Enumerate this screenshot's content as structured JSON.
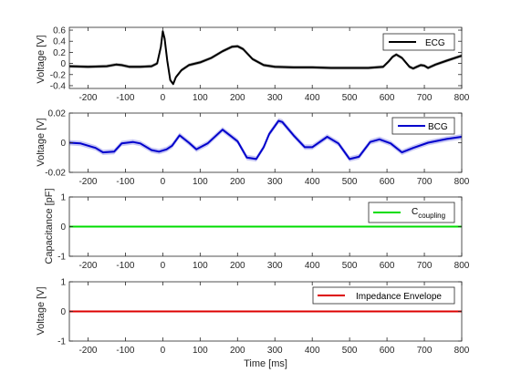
{
  "chart_data": [
    {
      "type": "line",
      "ylabel": "Voltage [V]",
      "xlim": [
        -250,
        800
      ],
      "ylim": [
        -0.45,
        0.65
      ],
      "xticks": [
        -200,
        -100,
        0,
        100,
        200,
        300,
        400,
        500,
        600,
        700,
        800
      ],
      "yticks": [
        -0.4,
        -0.2,
        0,
        0.2,
        0.4,
        0.6
      ],
      "ytick_labels": [
        "-0.4",
        "-0.2",
        "0",
        "0.2",
        "0.4",
        "0.6"
      ],
      "legend_position": "top-right",
      "band_color": "#a0a0a0",
      "series": [
        {
          "name": "ECG",
          "color": "#000000",
          "band": 0.03,
          "x": [
            -250,
            -200,
            -150,
            -125,
            -110,
            -90,
            -60,
            -30,
            -15,
            -5,
            0,
            5,
            12,
            20,
            28,
            35,
            50,
            70,
            100,
            130,
            160,
            185,
            200,
            215,
            240,
            270,
            300,
            350,
            400,
            450,
            500,
            550,
            590,
            605,
            615,
            625,
            640,
            660,
            670,
            680,
            690,
            700,
            710,
            730,
            760,
            800
          ],
          "y": [
            -0.05,
            -0.06,
            -0.05,
            -0.02,
            -0.03,
            -0.06,
            -0.06,
            -0.05,
            0.0,
            0.3,
            0.58,
            0.45,
            0.05,
            -0.3,
            -0.37,
            -0.25,
            -0.12,
            -0.03,
            0.02,
            0.1,
            0.22,
            0.3,
            0.31,
            0.26,
            0.08,
            -0.03,
            -0.06,
            -0.07,
            -0.07,
            -0.08,
            -0.08,
            -0.08,
            -0.06,
            0.04,
            0.12,
            0.16,
            0.1,
            -0.06,
            -0.09,
            -0.06,
            -0.03,
            -0.04,
            -0.08,
            -0.02,
            0.05,
            0.14
          ]
        }
      ]
    },
    {
      "type": "line",
      "ylabel": "Voltage [V]",
      "xlim": [
        -250,
        800
      ],
      "ylim": [
        -0.02,
        0.02
      ],
      "xticks": [
        -200,
        -100,
        0,
        100,
        200,
        300,
        400,
        500,
        600,
        700,
        800
      ],
      "yticks": [
        -0.02,
        0,
        0.02
      ],
      "ytick_labels": [
        "-0.02",
        "0",
        "0.02"
      ],
      "legend_position": "top-right",
      "band_color": "#b4b4f0",
      "series": [
        {
          "name": "BCG",
          "color": "#0000cc",
          "band": 0.0018,
          "x": [
            -250,
            -220,
            -180,
            -160,
            -130,
            -110,
            -80,
            -60,
            -30,
            -10,
            10,
            25,
            45,
            70,
            90,
            120,
            160,
            200,
            225,
            250,
            270,
            285,
            310,
            320,
            350,
            380,
            400,
            440,
            470,
            500,
            525,
            555,
            580,
            610,
            640,
            670,
            710,
            760,
            800
          ],
          "y": [
            0.0,
            -0.0005,
            -0.0035,
            -0.0065,
            -0.006,
            -0.0005,
            0.0005,
            -0.0005,
            -0.005,
            -0.006,
            -0.0045,
            -0.002,
            0.005,
            0.0,
            -0.0045,
            -0.0005,
            0.0088,
            0.001,
            -0.01,
            -0.011,
            -0.003,
            0.006,
            0.0148,
            0.014,
            0.005,
            -0.003,
            -0.003,
            0.004,
            -0.0005,
            -0.011,
            -0.0095,
            0.0005,
            0.0023,
            -0.0005,
            -0.0065,
            -0.0035,
            0.0,
            0.0025,
            0.004
          ]
        }
      ]
    },
    {
      "type": "line",
      "ylabel": "Capacitance [pF]",
      "xlim": [
        -250,
        800
      ],
      "ylim": [
        -1,
        1
      ],
      "xticks": [
        -200,
        -100,
        0,
        100,
        200,
        300,
        400,
        500,
        600,
        700,
        800
      ],
      "yticks": [
        -1,
        0,
        1
      ],
      "ytick_labels": [
        "-1",
        "0",
        "1"
      ],
      "legend_position": "top-right",
      "series": [
        {
          "name_main": "C",
          "name_sub": "coupling",
          "color": "#00dd00",
          "x": [
            -250,
            800
          ],
          "y": [
            0,
            0
          ]
        }
      ]
    },
    {
      "type": "line",
      "ylabel": "Voltage [V]",
      "xlabel": "Time [ms]",
      "xlim": [
        -250,
        800
      ],
      "ylim": [
        -1,
        1
      ],
      "xticks": [
        -200,
        -100,
        0,
        100,
        200,
        300,
        400,
        500,
        600,
        700,
        800
      ],
      "yticks": [
        -1,
        0,
        1
      ],
      "ytick_labels": [
        "-1",
        "0",
        "1"
      ],
      "legend_position": "top-right",
      "series": [
        {
          "name": "Impedance Envelope",
          "color": "#dd0000",
          "x": [
            -250,
            800
          ],
          "y": [
            0,
            0
          ]
        }
      ]
    }
  ]
}
